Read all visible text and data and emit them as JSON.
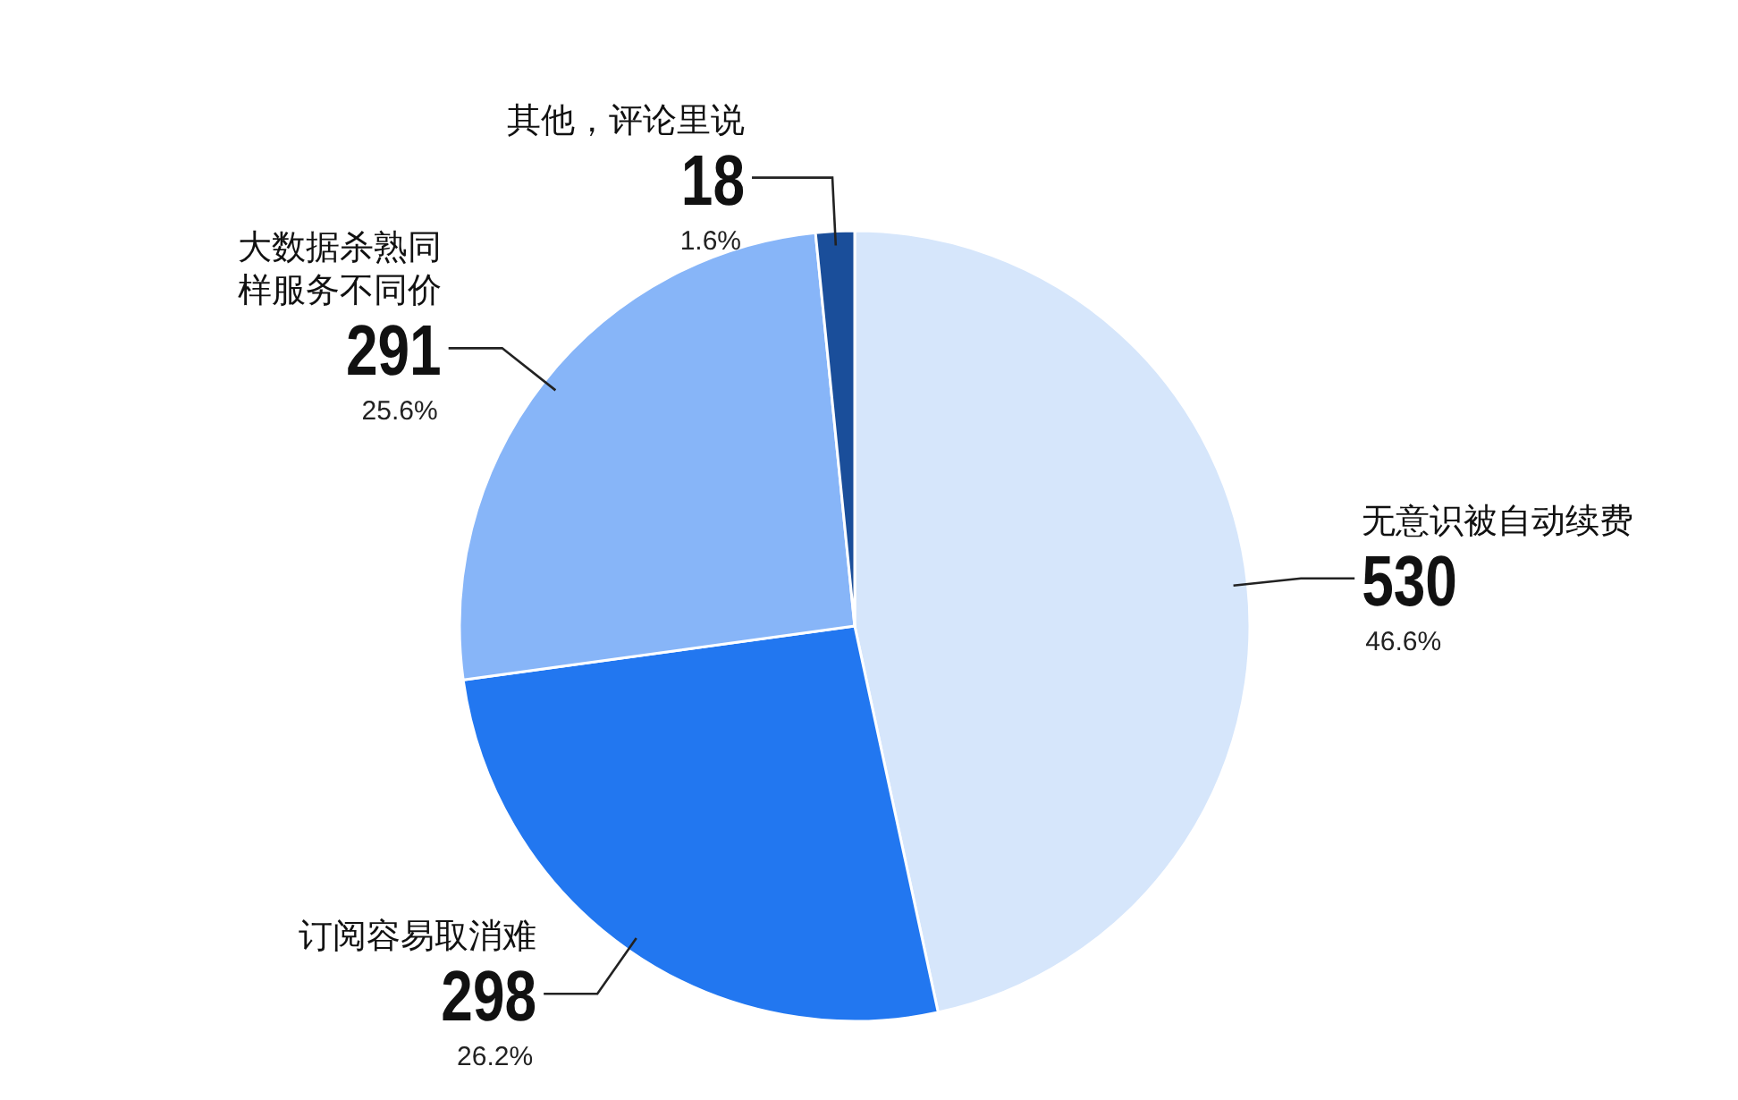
{
  "chart_data": {
    "type": "pie",
    "categories": [
      "无意识被自动续费",
      "订阅容易取消难",
      "大数据杀熟同样服务不同价",
      "其他，评论里说"
    ],
    "values": [
      530,
      298,
      291,
      18
    ],
    "colors": [
      "#d6e6fb",
      "#2277f0",
      "#87b5f8",
      "#1a4e9a"
    ],
    "value_labels": [
      "530",
      "298",
      "291",
      "18"
    ],
    "annotations": [
      "46.6%",
      "26.2%",
      "25.6%",
      "1.6%"
    ]
  }
}
